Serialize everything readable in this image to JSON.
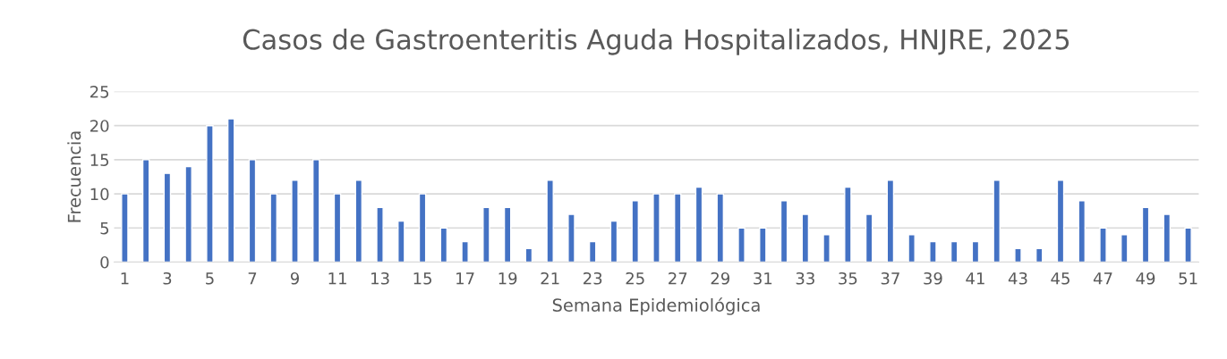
{
  "chart_data": {
    "type": "bar",
    "title": "Casos de Gastroenteritis Aguda Hospitalizados, HNJRE, 2025",
    "xlabel": "Semana Epidemiológica",
    "ylabel": "Frecuencia",
    "categories": [
      "1",
      null,
      "3",
      null,
      "5",
      null,
      "7",
      null,
      "9",
      null,
      "11",
      null,
      "13",
      null,
      "15",
      null,
      "17",
      null,
      "19",
      null,
      "21",
      null,
      "23",
      null,
      "25",
      null,
      "27",
      null,
      "29",
      null,
      "31",
      null,
      "33",
      null,
      "35",
      null,
      "37",
      null,
      "39",
      null,
      "41",
      null,
      "43",
      null,
      "45",
      null,
      "47",
      null,
      "49",
      null,
      "51"
    ],
    "values": [
      10,
      15,
      13,
      14,
      20,
      21,
      15,
      10,
      12,
      15,
      10,
      12,
      8,
      6,
      10,
      5,
      3,
      8,
      8,
      2,
      12,
      7,
      3,
      6,
      9,
      10,
      10,
      11,
      10,
      5,
      5,
      9,
      7,
      4,
      11,
      7,
      12,
      4,
      3,
      3,
      3,
      12,
      2,
      2,
      12,
      9,
      5,
      4,
      8,
      7,
      5
    ],
    "color": "#4472c4",
    "ylim": [
      0,
      25
    ],
    "yticks": [
      0,
      5,
      10,
      15,
      20,
      25
    ],
    "grid": "y",
    "legend": false
  }
}
